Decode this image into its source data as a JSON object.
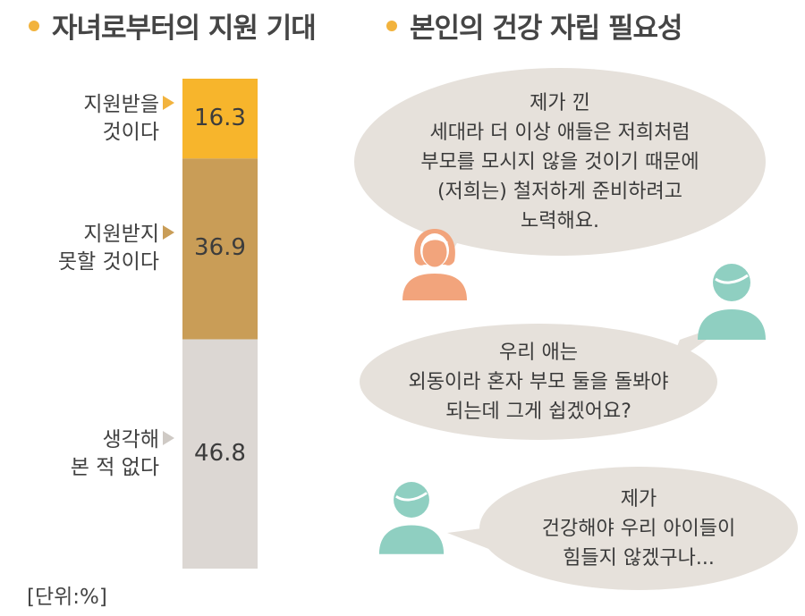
{
  "headings": {
    "left": "자녀로부터의 지원 기대",
    "right": "본인의 건강 자립  필요성"
  },
  "unit": "[단위:%]",
  "colors": {
    "accent": "#f2b33d",
    "segment_1": "#f7b52c",
    "segment_2": "#c99d57",
    "segment_3": "#dcd7d3",
    "bubble": "#e6e1db",
    "woman_icon": "#f2a47c",
    "man_icon": "#8fcfc1"
  },
  "chart_data": {
    "type": "bar",
    "stacked": true,
    "orientation": "vertical",
    "categories": [
      "지원받을\n것이다",
      "지원받지\n못할 것이다",
      "생각해\n본 적 없다"
    ],
    "values": [
      16.3,
      36.9,
      46.8
    ],
    "value_labels": [
      "16.3",
      "36.9",
      "46.8"
    ],
    "ylim": [
      0,
      100
    ]
  },
  "quotes": [
    {
      "text": "제가 낀\n세대라 더 이상 애들은 저희처럼\n부모를 모시지 않을 것이기 때문에\n(저희는) 철저하게 준비하려고\n노력해요.",
      "speaker_icon": "woman-icon"
    },
    {
      "text": "우리 애는\n외동이라 혼자 부모 둘을 돌봐야\n되는데 그게 쉽겠어요?",
      "speaker_icon": "man-icon"
    },
    {
      "text": "제가\n건강해야 우리 아이들이\n힘들지 않겠구나...",
      "speaker_icon": "man-icon"
    }
  ]
}
